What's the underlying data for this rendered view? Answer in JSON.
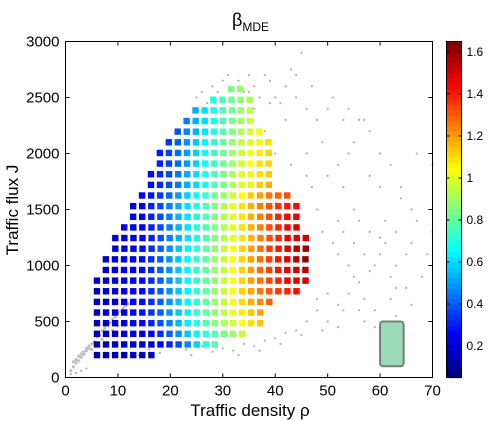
{
  "chart_data": {
    "type": "scatter",
    "title": "β",
    "title_subscript": "MDE",
    "xlabel": "Traffic density ρ",
    "ylabel": "Traffic flux J",
    "xlim": [
      0,
      70
    ],
    "ylim": [
      0,
      3000
    ],
    "x_ticks": [
      "0",
      "10",
      "20",
      "30",
      "40",
      "50",
      "60",
      "70"
    ],
    "y_ticks": [
      "0",
      "500",
      "1000",
      "1500",
      "2000",
      "2500",
      "3000"
    ],
    "grid": false,
    "colorbar": {
      "colormap": "jet",
      "range": [
        0.05,
        1.65
      ],
      "ticks": [
        "0.2",
        "0.4",
        "0.6",
        "0.8",
        "1",
        "1.2",
        "1.4",
        "1.6"
      ]
    },
    "annotation_box": {
      "x": [
        60,
        64.5
      ],
      "y": [
        100,
        500
      ],
      "color": "#99dbb8"
    },
    "grid_spacing": {
      "x": 1.73,
      "y": 95
    },
    "rows": [
      {
        "y": 200,
        "x_start": 6.0,
        "betas": [
          0.12,
          0.12,
          0.13,
          0.13,
          0.14,
          0.15,
          0.16
        ]
      },
      {
        "y": 295,
        "x_start": 6.0,
        "betas": [
          0.13,
          0.14,
          0.15,
          0.16,
          0.17,
          0.19,
          0.21,
          0.26,
          0.31,
          0.37,
          0.46,
          0.58,
          0.7,
          0.78
        ]
      },
      {
        "y": 390,
        "x_start": 6.0,
        "betas": [
          0.14,
          0.15,
          0.16,
          0.17,
          0.19,
          0.21,
          0.25,
          0.32,
          0.4,
          0.48,
          0.56,
          0.64,
          0.72,
          0.78,
          0.84,
          0.9,
          0.96
        ]
      },
      {
        "y": 485,
        "x_start": 6.0,
        "betas": [
          0.15,
          0.16,
          0.17,
          0.19,
          0.21,
          0.24,
          0.3,
          0.38,
          0.46,
          0.54,
          0.62,
          0.7,
          0.78,
          0.86,
          0.92,
          0.98,
          1.04,
          1.1,
          1.14
        ]
      },
      {
        "y": 580,
        "x_start": 6.0,
        "betas": [
          0.15,
          0.16,
          0.18,
          0.2,
          0.23,
          0.27,
          0.33,
          0.4,
          0.48,
          0.56,
          0.64,
          0.72,
          0.8,
          0.88,
          0.95,
          1.02,
          1.08,
          1.14,
          1.2
        ]
      },
      {
        "y": 675,
        "x_start": 6.0,
        "betas": [
          0.15,
          0.16,
          0.18,
          0.2,
          0.22,
          0.26,
          0.32,
          0.4,
          0.48,
          0.56,
          0.64,
          0.72,
          0.8,
          0.88,
          0.96,
          1.04,
          1.11,
          1.18,
          1.24,
          1.3
        ]
      },
      {
        "y": 770,
        "x_start": 6.0,
        "betas": [
          0.15,
          0.16,
          0.18,
          0.2,
          0.22,
          0.26,
          0.32,
          0.4,
          0.48,
          0.56,
          0.64,
          0.72,
          0.8,
          0.88,
          0.96,
          1.04,
          1.12,
          1.19,
          1.26,
          1.32,
          1.36,
          1.4,
          1.44
        ]
      },
      {
        "y": 865,
        "x_start": 6.0,
        "betas": [
          0.15,
          0.16,
          0.18,
          0.2,
          0.22,
          0.26,
          0.32,
          0.4,
          0.48,
          0.56,
          0.64,
          0.72,
          0.8,
          0.88,
          0.96,
          1.04,
          1.12,
          1.2,
          1.27,
          1.34,
          1.4,
          1.46,
          1.5,
          1.52
        ]
      },
      {
        "y": 960,
        "x_start": 7.7,
        "betas": [
          0.16,
          0.18,
          0.2,
          0.22,
          0.26,
          0.32,
          0.4,
          0.48,
          0.56,
          0.64,
          0.72,
          0.8,
          0.88,
          0.96,
          1.04,
          1.12,
          1.2,
          1.28,
          1.35,
          1.42,
          1.48,
          1.52,
          1.55
        ]
      },
      {
        "y": 1055,
        "x_start": 7.7,
        "betas": [
          0.16,
          0.18,
          0.2,
          0.22,
          0.26,
          0.32,
          0.4,
          0.48,
          0.56,
          0.64,
          0.72,
          0.8,
          0.88,
          0.96,
          1.04,
          1.12,
          1.2,
          1.28,
          1.35,
          1.42,
          1.5,
          1.57,
          1.63
        ]
      },
      {
        "y": 1150,
        "x_start": 9.5,
        "betas": [
          0.18,
          0.2,
          0.22,
          0.26,
          0.32,
          0.4,
          0.48,
          0.56,
          0.64,
          0.72,
          0.8,
          0.88,
          0.96,
          1.04,
          1.12,
          1.2,
          1.28,
          1.36,
          1.43,
          1.5,
          1.56,
          1.6
        ]
      },
      {
        "y": 1245,
        "x_start": 9.5,
        "betas": [
          0.18,
          0.2,
          0.22,
          0.25,
          0.3,
          0.37,
          0.45,
          0.53,
          0.61,
          0.69,
          0.77,
          0.85,
          0.93,
          1.01,
          1.09,
          1.17,
          1.25,
          1.33,
          1.4,
          1.46,
          1.5,
          1.52
        ]
      },
      {
        "y": 1340,
        "x_start": 11.2,
        "betas": [
          0.2,
          0.22,
          0.25,
          0.3,
          0.37,
          0.45,
          0.53,
          0.61,
          0.69,
          0.77,
          0.85,
          0.93,
          1.01,
          1.09,
          1.17,
          1.25,
          1.33,
          1.4,
          1.46,
          1.5
        ]
      },
      {
        "y": 1435,
        "x_start": 12.9,
        "betas": [
          0.22,
          0.25,
          0.3,
          0.37,
          0.45,
          0.53,
          0.61,
          0.69,
          0.77,
          0.85,
          0.93,
          1.01,
          1.09,
          1.17,
          1.25,
          1.33,
          1.4,
          1.45,
          1.48
        ]
      },
      {
        "y": 1530,
        "x_start": 12.9,
        "betas": [
          0.22,
          0.25,
          0.3,
          0.37,
          0.45,
          0.53,
          0.61,
          0.69,
          0.77,
          0.85,
          0.93,
          1.01,
          1.09,
          1.17,
          1.25,
          1.32,
          1.38,
          1.42,
          1.44
        ]
      },
      {
        "y": 1625,
        "x_start": 14.6,
        "betas": [
          0.24,
          0.28,
          0.34,
          0.41,
          0.49,
          0.57,
          0.65,
          0.73,
          0.81,
          0.89,
          0.97,
          1.05,
          1.13,
          1.2,
          1.26,
          1.3,
          1.33
        ]
      },
      {
        "y": 1720,
        "x_start": 16.3,
        "betas": [
          0.26,
          0.31,
          0.37,
          0.44,
          0.52,
          0.6,
          0.68,
          0.76,
          0.84,
          0.92,
          1.0,
          1.07,
          1.13,
          1.17
        ]
      },
      {
        "y": 1815,
        "x_start": 16.3,
        "betas": [
          0.26,
          0.31,
          0.37,
          0.44,
          0.52,
          0.6,
          0.68,
          0.76,
          0.84,
          0.92,
          1.0,
          1.06,
          1.1,
          1.13
        ]
      },
      {
        "y": 1910,
        "x_start": 18.0,
        "betas": [
          0.29,
          0.35,
          0.42,
          0.5,
          0.58,
          0.66,
          0.74,
          0.82,
          0.9,
          0.98,
          1.04,
          1.09,
          1.12
        ]
      },
      {
        "y": 2005,
        "x_start": 18.0,
        "betas": [
          0.29,
          0.35,
          0.42,
          0.5,
          0.58,
          0.66,
          0.74,
          0.82,
          0.9,
          0.97,
          1.03,
          1.08,
          1.12
        ]
      },
      {
        "y": 2100,
        "x_start": 19.7,
        "betas": [
          0.33,
          0.4,
          0.48,
          0.56,
          0.64,
          0.72,
          0.8,
          0.88,
          0.95,
          1.01,
          1.06,
          1.1
        ]
      },
      {
        "y": 2195,
        "x_start": 21.4,
        "betas": [
          0.38,
          0.45,
          0.53,
          0.61,
          0.69,
          0.77,
          0.85,
          0.92,
          0.98,
          1.03
        ]
      },
      {
        "y": 2290,
        "x_start": 23.1,
        "betas": [
          0.44,
          0.52,
          0.6,
          0.68,
          0.76,
          0.83,
          0.9,
          0.96
        ]
      },
      {
        "y": 2385,
        "x_start": 24.8,
        "betas": [
          0.52,
          0.6,
          0.68,
          0.76,
          0.83,
          0.89,
          0.94
        ]
      },
      {
        "y": 2480,
        "x_start": 28.2,
        "betas": [
          0.7,
          0.76,
          0.82,
          0.87,
          0.91
        ]
      },
      {
        "y": 2575,
        "x_start": 31.6,
        "betas": [
          0.84,
          0.88
        ]
      }
    ],
    "low_density_points": [
      [
        1,
        60
      ],
      [
        1.5,
        95
      ],
      [
        2,
        130
      ],
      [
        2.5,
        150
      ],
      [
        3,
        180
      ],
      [
        3.5,
        205
      ],
      [
        4,
        240
      ],
      [
        4.5,
        260
      ],
      [
        5,
        300
      ],
      [
        5.5,
        320
      ],
      [
        6,
        360
      ],
      [
        6.5,
        380
      ],
      [
        7,
        420
      ],
      [
        7.5,
        440
      ],
      [
        8,
        470
      ],
      [
        8.5,
        490
      ],
      [
        9,
        520
      ],
      [
        9.5,
        540
      ],
      [
        10,
        570
      ],
      [
        10.5,
        590
      ],
      [
        11,
        620
      ],
      [
        11.5,
        640
      ],
      [
        12,
        660
      ],
      [
        1.5,
        140
      ],
      [
        2,
        160
      ],
      [
        2.5,
        190
      ],
      [
        3,
        210
      ],
      [
        3.5,
        230
      ],
      [
        4,
        260
      ],
      [
        4.5,
        280
      ],
      [
        5,
        250
      ],
      [
        6,
        300
      ],
      [
        7,
        340
      ],
      [
        8,
        380
      ],
      [
        9,
        420
      ],
      [
        10,
        460
      ]
    ],
    "outlier_points": [
      [
        2,
        40
      ],
      [
        3,
        60
      ],
      [
        4,
        80
      ],
      [
        1,
        30
      ],
      [
        52,
        1900
      ],
      [
        55,
        1500
      ],
      [
        58,
        1300
      ],
      [
        60,
        1100
      ],
      [
        62,
        900
      ],
      [
        63,
        1000
      ],
      [
        65,
        800
      ],
      [
        66,
        1200
      ],
      [
        55,
        900
      ],
      [
        57,
        700
      ],
      [
        59,
        600
      ],
      [
        61,
        500
      ],
      [
        54,
        2000
      ],
      [
        57,
        2300
      ],
      [
        60,
        1700
      ],
      [
        64,
        1600
      ],
      [
        67,
        2000
      ],
      [
        70,
        1900
      ],
      [
        49,
        2100
      ],
      [
        50,
        1800
      ],
      [
        53,
        1700
      ],
      [
        56,
        1400
      ],
      [
        58,
        1800
      ],
      [
        61,
        1400
      ],
      [
        63,
        1300
      ],
      [
        52,
        1100
      ],
      [
        54,
        1000
      ],
      [
        56,
        850
      ],
      [
        58,
        950
      ],
      [
        60,
        1250
      ],
      [
        48,
        700
      ],
      [
        50,
        750
      ],
      [
        52,
        650
      ],
      [
        54,
        750
      ],
      [
        56,
        600
      ],
      [
        62,
        700
      ],
      [
        65,
        1100
      ],
      [
        67,
        1400
      ],
      [
        40,
        2000
      ],
      [
        42,
        2300
      ],
      [
        44,
        2500
      ],
      [
        46,
        2000
      ],
      [
        38,
        2200
      ],
      [
        36,
        2400
      ],
      [
        48,
        2300
      ],
      [
        43,
        1900
      ],
      [
        46,
        1800
      ],
      [
        50,
        2400
      ],
      [
        55,
        2100
      ],
      [
        30,
        2650
      ],
      [
        33,
        2650
      ],
      [
        36,
        2600
      ],
      [
        38,
        2700
      ],
      [
        40,
        2500
      ],
      [
        42,
        2600
      ],
      [
        44,
        2700
      ],
      [
        45,
        2900
      ],
      [
        35,
        2700
      ],
      [
        39,
        2450
      ],
      [
        25,
        2500
      ],
      [
        27,
        2450
      ],
      [
        29,
        2550
      ],
      [
        31,
        2700
      ],
      [
        34,
        2550
      ],
      [
        37,
        2500
      ],
      [
        41,
        2450
      ],
      [
        47,
        1700
      ],
      [
        48,
        1500
      ],
      [
        49,
        1300
      ],
      [
        51,
        1200
      ],
      [
        52,
        1400
      ],
      [
        53,
        1300
      ],
      [
        55,
        1200
      ],
      [
        57,
        1100
      ],
      [
        59,
        1000
      ],
      [
        61,
        1200
      ],
      [
        63,
        800
      ],
      [
        20,
        300
      ],
      [
        23,
        250
      ],
      [
        26,
        280
      ],
      [
        30,
        260
      ],
      [
        34,
        300
      ],
      [
        38,
        330
      ],
      [
        42,
        400
      ],
      [
        46,
        500
      ],
      [
        48,
        600
      ],
      [
        50,
        500
      ],
      [
        52,
        450
      ],
      [
        14,
        200
      ],
      [
        16,
        250
      ],
      [
        18,
        220
      ],
      [
        24,
        200
      ],
      [
        28,
        230
      ],
      [
        32,
        240
      ],
      [
        36,
        280
      ],
      [
        40,
        350
      ],
      [
        44,
        420
      ],
      [
        33,
        200
      ],
      [
        37,
        240
      ],
      [
        41,
        300
      ],
      [
        45,
        380
      ],
      [
        49,
        420
      ],
      [
        53,
        600
      ],
      [
        57,
        500
      ],
      [
        59,
        450
      ],
      [
        63,
        550
      ],
      [
        66,
        650
      ],
      [
        68,
        900
      ],
      [
        69,
        1100
      ],
      [
        70,
        1300
      ],
      [
        66,
        1500
      ],
      [
        64,
        1700
      ],
      [
        62,
        1900
      ],
      [
        60,
        2000
      ],
      [
        58,
        2200
      ],
      [
        56,
        2300
      ],
      [
        54,
        2400
      ],
      [
        43,
        2750
      ],
      [
        47,
        2600
      ],
      [
        51,
        2500
      ],
      [
        53,
        2300
      ],
      [
        46,
        2400
      ],
      [
        39,
        2650
      ],
      [
        35,
        2550
      ],
      [
        32,
        2500
      ],
      [
        28,
        2600
      ],
      [
        26,
        2550
      ]
    ]
  }
}
